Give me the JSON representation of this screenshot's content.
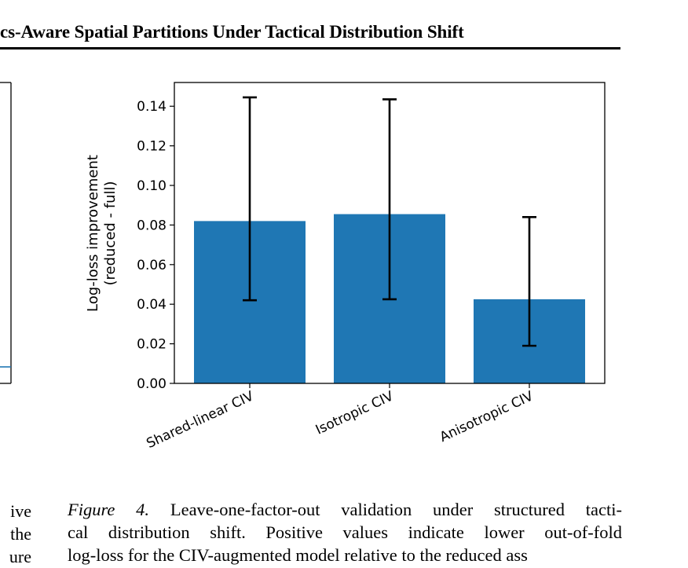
{
  "header": {
    "title": "cs-Aware Spatial Partitions Under Tactical Distribution Shift"
  },
  "left_column": {
    "fragments": [
      "ive",
      "the",
      "ure"
    ]
  },
  "caption": {
    "label": "Figure 4.",
    "lines": [
      "Leave-one-factor-out validation under structured tacti-",
      "cal distribution shift.  Positive values indicate lower out-of-fold",
      "log-loss for the CIV-augmented model relative to the reduced ass"
    ]
  },
  "chart_data": {
    "type": "bar",
    "categories": [
      "Shared-linear CIV",
      "Isotropic CIV",
      "Anisotropic CIV"
    ],
    "values": [
      0.082,
      0.0855,
      0.0425
    ],
    "error_low": [
      0.042,
      0.0425,
      0.019
    ],
    "error_high": [
      0.1445,
      0.1435,
      0.084
    ],
    "ylabel_lines": [
      "Log-loss improvement",
      "(reduced - full)"
    ],
    "ylim": [
      0,
      0.152
    ],
    "yticks": [
      "0.00",
      "0.02",
      "0.04",
      "0.06",
      "0.08",
      "0.10",
      "0.12",
      "0.14"
    ],
    "bar_color": "#1f77b4",
    "error_color": "#000000",
    "grid": false
  },
  "left_panel": {
    "line_color": "#1f77b4"
  }
}
